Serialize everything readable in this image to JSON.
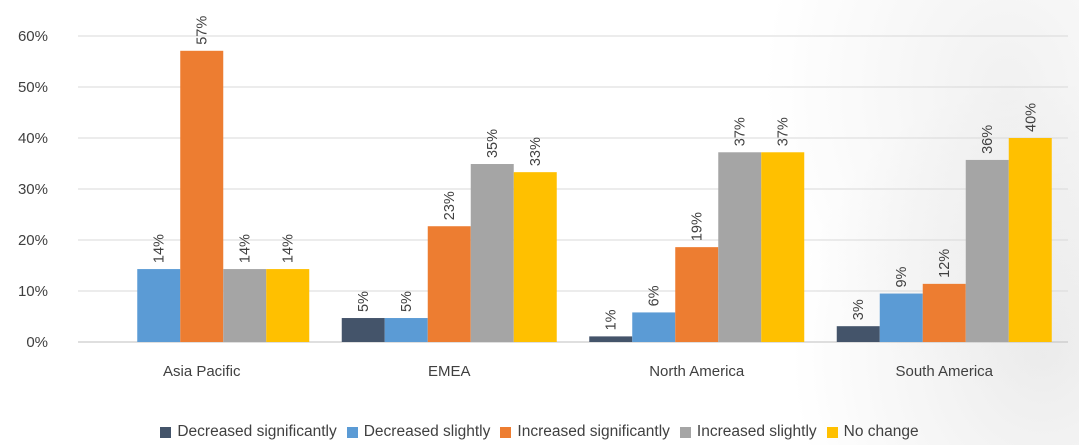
{
  "chart_data": {
    "type": "bar",
    "categories": [
      "Asia Pacific",
      "EMEA",
      "North America",
      "South America"
    ],
    "series": [
      {
        "name": "Decreased significantly",
        "color": "#44546a",
        "values": [
          0,
          5,
          1,
          3
        ],
        "labels": [
          "",
          "5%",
          "1%",
          "3%"
        ],
        "exact": [
          0,
          4.7,
          1.1,
          3.1
        ]
      },
      {
        "name": "Decreased slightly",
        "color": "#5b9bd5",
        "values": [
          14,
          5,
          6,
          9
        ],
        "labels": [
          "14%",
          "5%",
          "6%",
          "9%"
        ],
        "exact": [
          14.3,
          4.7,
          5.8,
          9.5
        ]
      },
      {
        "name": "Increased significantly",
        "color": "#ed7d31",
        "values": [
          57,
          23,
          19,
          12
        ],
        "labels": [
          "57%",
          "23%",
          "19%",
          "12%"
        ],
        "exact": [
          57.1,
          22.7,
          18.6,
          11.4
        ]
      },
      {
        "name": "Increased slightly",
        "color": "#a5a5a5",
        "values": [
          14,
          35,
          37,
          36
        ],
        "labels": [
          "14%",
          "35%",
          "37%",
          "36%"
        ],
        "exact": [
          14.3,
          34.9,
          37.2,
          35.7
        ]
      },
      {
        "name": "No change",
        "color": "#ffc000",
        "values": [
          14,
          33,
          37,
          40
        ],
        "labels": [
          "14%",
          "33%",
          "37%",
          "40%"
        ],
        "exact": [
          14.3,
          33.3,
          37.2,
          40.0
        ]
      }
    ],
    "y_ticks": [
      "0%",
      "10%",
      "20%",
      "30%",
      "40%",
      "50%",
      "60%"
    ],
    "ylim": [
      0,
      60
    ],
    "title": "",
    "xlabel": "",
    "ylabel": "",
    "grid": true,
    "legend_position": "bottom"
  }
}
